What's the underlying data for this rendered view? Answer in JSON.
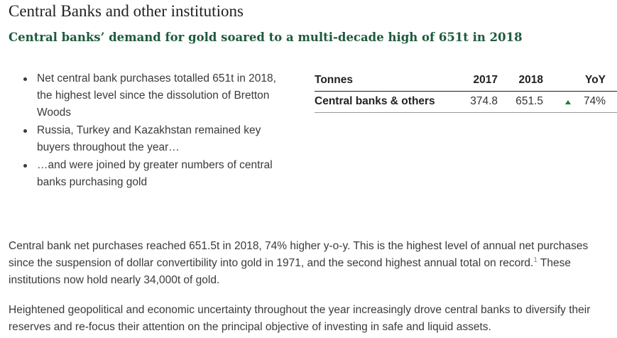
{
  "section_title": "Central Banks and other institutions",
  "headline": "Central banks’ demand for gold soared to a multi-decade high of 651t in 2018",
  "bullets": [
    "Net central bank purchases totalled 651t in 2018, the highest level since the dissolution of Bretton Woods",
    "Russia, Turkey and Kazakhstan remained key buyers throughout the year…",
    "…and were joined by greater numbers of central banks purchasing gold"
  ],
  "table": {
    "headers": {
      "label": "Tonnes",
      "year1": "2017",
      "year2": "2018",
      "yoy": "YoY"
    },
    "rows": [
      {
        "label": "Central banks & others",
        "year1": "374.8",
        "year2": "651.5",
        "trend": "up-arrow-icon",
        "yoy": "74%"
      }
    ],
    "trend_color": "#1e7a3c"
  },
  "paragraphs": {
    "p1_text": "Central bank net purchases reached 651.5t in 2018, 74% higher y-o-y. This is the highest level of annual net purchases since the suspension of dollar convertibility into gold in 1971, and the second highest annual total on record.",
    "p1_footnote": "1",
    "p1_tail": " These institutions now hold nearly 34,000t of gold.",
    "p2_text": "Heightened geopolitical and economic uncertainty throughout the year increasingly drove central banks to diversify their reserves and re-focus their attention on the principal objective of investing in safe and liquid assets."
  },
  "colors": {
    "headline": "#1e5a3c",
    "text": "#3a3a3a",
    "accent_green": "#1e7a3c"
  }
}
